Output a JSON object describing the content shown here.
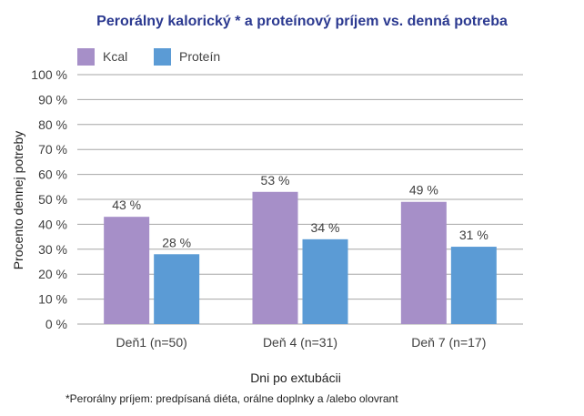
{
  "chart_data": {
    "type": "bar",
    "title": "Perorálny kalorický * a proteínový príjem vs. denná potreba",
    "xlabel": "Dni po extubácii",
    "ylabel": "Procento dennej potreby",
    "categories": [
      "Deň1 (n=50)",
      "Deň 4 (n=31)",
      "Deň 7 (n=17)"
    ],
    "series": [
      {
        "name": "Kcal",
        "values": [
          43,
          53,
          49
        ],
        "labels": [
          "43 %",
          "53 %",
          "49 %"
        ],
        "color": "#a68fc8"
      },
      {
        "name": "Proteín",
        "values": [
          28,
          34,
          31
        ],
        "labels": [
          "28 %",
          "34 %",
          "31 %"
        ],
        "color": "#5b9bd5"
      }
    ],
    "ylim": [
      0,
      100
    ],
    "yticks": [
      0,
      10,
      20,
      30,
      40,
      50,
      60,
      70,
      80,
      90,
      100
    ],
    "ytick_labels": [
      "0 %",
      "10 %",
      "20 %",
      "30 %",
      "40 %",
      "50 %",
      "60 %",
      "70 %",
      "80 %",
      "90 %",
      "100 %"
    ],
    "grid": true,
    "legend_position": "top-left"
  },
  "footnote": "*Perorálny príjem:  predpísaná diéta, orálne doplnky a /alebo olovrant"
}
